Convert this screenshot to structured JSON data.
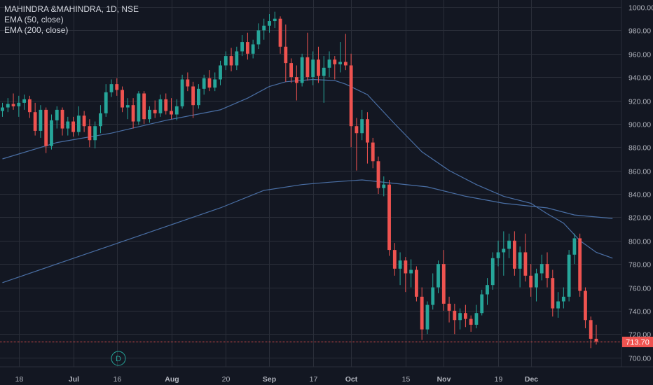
{
  "header": {
    "title": "MAHINDRA &MAHINDRA, 1D, NSE",
    "indicators": [
      "EMA (50, close)",
      "EMA (200, close)"
    ]
  },
  "colors": {
    "background": "#131722",
    "grid": "#2a2e39",
    "up": "#26a69a",
    "down": "#ef5350",
    "ema": "#4a6fa5",
    "text": "#b2b5be",
    "price_line": "#ef5350"
  },
  "price_label": "713.70",
  "event_marker": "D",
  "chart_data": {
    "type": "candlestick",
    "title": "MAHINDRA &MAHINDRA, 1D, NSE",
    "ylim": [
      692,
      1006
    ],
    "y_ticks": [
      700,
      720,
      740,
      760,
      780,
      800,
      820,
      840,
      860,
      880,
      900,
      920,
      940,
      960,
      980,
      1000
    ],
    "x_tick_labels": [
      "18",
      "Jul",
      "16",
      "Aug",
      "20",
      "Sep",
      "17",
      "Oct",
      "15",
      "Nov",
      "19",
      "Dec"
    ],
    "x_tick_bar_index": [
      3,
      13,
      21,
      31,
      41,
      49,
      57,
      64,
      74,
      81,
      91,
      97
    ],
    "last_price": 713.7,
    "ohlc": [
      {
        "o": 911,
        "h": 918,
        "l": 906,
        "c": 914
      },
      {
        "o": 914,
        "h": 922,
        "l": 910,
        "c": 917
      },
      {
        "o": 917,
        "h": 926,
        "l": 912,
        "c": 915
      },
      {
        "o": 915,
        "h": 924,
        "l": 906,
        "c": 918
      },
      {
        "o": 918,
        "h": 925,
        "l": 912,
        "c": 921
      },
      {
        "o": 921,
        "h": 924,
        "l": 905,
        "c": 910
      },
      {
        "o": 910,
        "h": 918,
        "l": 890,
        "c": 894
      },
      {
        "o": 894,
        "h": 916,
        "l": 888,
        "c": 912
      },
      {
        "o": 912,
        "h": 914,
        "l": 875,
        "c": 881
      },
      {
        "o": 881,
        "h": 908,
        "l": 878,
        "c": 903
      },
      {
        "o": 903,
        "h": 915,
        "l": 896,
        "c": 912
      },
      {
        "o": 912,
        "h": 914,
        "l": 890,
        "c": 896
      },
      {
        "o": 896,
        "h": 906,
        "l": 890,
        "c": 902
      },
      {
        "o": 902,
        "h": 906,
        "l": 889,
        "c": 893
      },
      {
        "o": 893,
        "h": 915,
        "l": 890,
        "c": 907
      },
      {
        "o": 907,
        "h": 911,
        "l": 893,
        "c": 898
      },
      {
        "o": 898,
        "h": 904,
        "l": 880,
        "c": 886
      },
      {
        "o": 886,
        "h": 902,
        "l": 879,
        "c": 898
      },
      {
        "o": 898,
        "h": 916,
        "l": 892,
        "c": 909
      },
      {
        "o": 909,
        "h": 934,
        "l": 906,
        "c": 927
      },
      {
        "o": 927,
        "h": 938,
        "l": 923,
        "c": 934
      },
      {
        "o": 934,
        "h": 939,
        "l": 924,
        "c": 929
      },
      {
        "o": 929,
        "h": 932,
        "l": 910,
        "c": 914
      },
      {
        "o": 914,
        "h": 922,
        "l": 904,
        "c": 916
      },
      {
        "o": 916,
        "h": 922,
        "l": 896,
        "c": 902
      },
      {
        "o": 902,
        "h": 928,
        "l": 899,
        "c": 926
      },
      {
        "o": 926,
        "h": 928,
        "l": 900,
        "c": 904
      },
      {
        "o": 904,
        "h": 915,
        "l": 901,
        "c": 912
      },
      {
        "o": 912,
        "h": 920,
        "l": 905,
        "c": 909
      },
      {
        "o": 909,
        "h": 925,
        "l": 906,
        "c": 921
      },
      {
        "o": 921,
        "h": 926,
        "l": 908,
        "c": 911
      },
      {
        "o": 911,
        "h": 922,
        "l": 904,
        "c": 908
      },
      {
        "o": 908,
        "h": 921,
        "l": 903,
        "c": 915
      },
      {
        "o": 915,
        "h": 942,
        "l": 913,
        "c": 938
      },
      {
        "o": 938,
        "h": 944,
        "l": 928,
        "c": 932
      },
      {
        "o": 932,
        "h": 936,
        "l": 905,
        "c": 916
      },
      {
        "o": 916,
        "h": 934,
        "l": 913,
        "c": 930
      },
      {
        "o": 930,
        "h": 942,
        "l": 925,
        "c": 939
      },
      {
        "o": 939,
        "h": 946,
        "l": 928,
        "c": 931
      },
      {
        "o": 931,
        "h": 944,
        "l": 928,
        "c": 938
      },
      {
        "o": 938,
        "h": 954,
        "l": 933,
        "c": 950
      },
      {
        "o": 950,
        "h": 962,
        "l": 946,
        "c": 958
      },
      {
        "o": 958,
        "h": 965,
        "l": 945,
        "c": 950
      },
      {
        "o": 950,
        "h": 966,
        "l": 946,
        "c": 962
      },
      {
        "o": 962,
        "h": 976,
        "l": 958,
        "c": 970
      },
      {
        "o": 970,
        "h": 978,
        "l": 955,
        "c": 960
      },
      {
        "o": 960,
        "h": 972,
        "l": 956,
        "c": 968
      },
      {
        "o": 968,
        "h": 986,
        "l": 964,
        "c": 980
      },
      {
        "o": 980,
        "h": 990,
        "l": 972,
        "c": 984
      },
      {
        "o": 984,
        "h": 994,
        "l": 978,
        "c": 988
      },
      {
        "o": 988,
        "h": 996,
        "l": 982,
        "c": 990
      },
      {
        "o": 990,
        "h": 992,
        "l": 960,
        "c": 966
      },
      {
        "o": 966,
        "h": 985,
        "l": 936,
        "c": 952
      },
      {
        "o": 952,
        "h": 956,
        "l": 935,
        "c": 940
      },
      {
        "o": 940,
        "h": 950,
        "l": 920,
        "c": 935
      },
      {
        "o": 935,
        "h": 960,
        "l": 932,
        "c": 957
      },
      {
        "o": 957,
        "h": 978,
        "l": 937,
        "c": 940
      },
      {
        "o": 940,
        "h": 962,
        "l": 933,
        "c": 955
      },
      {
        "o": 955,
        "h": 966,
        "l": 935,
        "c": 941
      },
      {
        "o": 941,
        "h": 958,
        "l": 918,
        "c": 948
      },
      {
        "o": 948,
        "h": 962,
        "l": 940,
        "c": 955
      },
      {
        "o": 955,
        "h": 958,
        "l": 938,
        "c": 951
      },
      {
        "o": 951,
        "h": 970,
        "l": 944,
        "c": 953
      },
      {
        "o": 953,
        "h": 977,
        "l": 946,
        "c": 950
      },
      {
        "o": 950,
        "h": 960,
        "l": 880,
        "c": 898
      },
      {
        "o": 898,
        "h": 905,
        "l": 860,
        "c": 892
      },
      {
        "o": 892,
        "h": 912,
        "l": 886,
        "c": 904
      },
      {
        "o": 904,
        "h": 910,
        "l": 866,
        "c": 884
      },
      {
        "o": 884,
        "h": 888,
        "l": 862,
        "c": 868
      },
      {
        "o": 868,
        "h": 872,
        "l": 840,
        "c": 845
      },
      {
        "o": 845,
        "h": 855,
        "l": 838,
        "c": 848
      },
      {
        "o": 848,
        "h": 852,
        "l": 787,
        "c": 792
      },
      {
        "o": 792,
        "h": 798,
        "l": 770,
        "c": 776
      },
      {
        "o": 776,
        "h": 790,
        "l": 762,
        "c": 783
      },
      {
        "o": 783,
        "h": 786,
        "l": 756,
        "c": 772
      },
      {
        "o": 772,
        "h": 784,
        "l": 760,
        "c": 775
      },
      {
        "o": 775,
        "h": 778,
        "l": 748,
        "c": 752
      },
      {
        "o": 752,
        "h": 760,
        "l": 715,
        "c": 724
      },
      {
        "o": 724,
        "h": 748,
        "l": 720,
        "c": 745
      },
      {
        "o": 745,
        "h": 772,
        "l": 741,
        "c": 760
      },
      {
        "o": 760,
        "h": 783,
        "l": 755,
        "c": 780
      },
      {
        "o": 780,
        "h": 792,
        "l": 740,
        "c": 746
      },
      {
        "o": 746,
        "h": 752,
        "l": 730,
        "c": 740
      },
      {
        "o": 740,
        "h": 746,
        "l": 720,
        "c": 732
      },
      {
        "o": 732,
        "h": 742,
        "l": 724,
        "c": 738
      },
      {
        "o": 738,
        "h": 745,
        "l": 726,
        "c": 733
      },
      {
        "o": 733,
        "h": 736,
        "l": 722,
        "c": 728
      },
      {
        "o": 728,
        "h": 745,
        "l": 725,
        "c": 738
      },
      {
        "o": 738,
        "h": 758,
        "l": 736,
        "c": 754
      },
      {
        "o": 754,
        "h": 768,
        "l": 745,
        "c": 762
      },
      {
        "o": 762,
        "h": 790,
        "l": 758,
        "c": 785
      },
      {
        "o": 785,
        "h": 800,
        "l": 778,
        "c": 790
      },
      {
        "o": 790,
        "h": 808,
        "l": 770,
        "c": 793
      },
      {
        "o": 793,
        "h": 806,
        "l": 785,
        "c": 800
      },
      {
        "o": 800,
        "h": 808,
        "l": 770,
        "c": 776
      },
      {
        "o": 776,
        "h": 795,
        "l": 760,
        "c": 790
      },
      {
        "o": 790,
        "h": 806,
        "l": 765,
        "c": 770
      },
      {
        "o": 770,
        "h": 780,
        "l": 752,
        "c": 760
      },
      {
        "o": 760,
        "h": 776,
        "l": 748,
        "c": 772
      },
      {
        "o": 772,
        "h": 788,
        "l": 766,
        "c": 780
      },
      {
        "o": 780,
        "h": 790,
        "l": 760,
        "c": 768
      },
      {
        "o": 768,
        "h": 775,
        "l": 735,
        "c": 742
      },
      {
        "o": 742,
        "h": 756,
        "l": 734,
        "c": 748
      },
      {
        "o": 748,
        "h": 760,
        "l": 742,
        "c": 752
      },
      {
        "o": 752,
        "h": 792,
        "l": 748,
        "c": 788
      },
      {
        "o": 788,
        "h": 806,
        "l": 780,
        "c": 802
      },
      {
        "o": 802,
        "h": 806,
        "l": 752,
        "c": 757
      },
      {
        "o": 757,
        "h": 760,
        "l": 725,
        "c": 732
      },
      {
        "o": 732,
        "h": 735,
        "l": 708,
        "c": 716
      },
      {
        "o": 716,
        "h": 728,
        "l": 711,
        "c": 713.7
      }
    ],
    "series": [
      {
        "name": "EMA (50, close)",
        "values_at_x": [
          [
            0,
            870
          ],
          [
            10,
            884
          ],
          [
            20,
            892
          ],
          [
            30,
            903
          ],
          [
            40,
            912
          ],
          [
            45,
            922
          ],
          [
            49,
            932
          ],
          [
            52,
            936
          ],
          [
            57,
            938
          ],
          [
            61,
            937
          ],
          [
            63,
            934
          ],
          [
            67,
            925
          ],
          [
            72,
            900
          ],
          [
            77,
            876
          ],
          [
            82,
            860
          ],
          [
            87,
            848
          ],
          [
            92,
            838
          ],
          [
            97,
            832
          ],
          [
            100,
            823
          ],
          [
            103,
            815
          ],
          [
            106,
            800
          ],
          [
            109,
            790
          ],
          [
            112,
            785
          ]
        ]
      },
      {
        "name": "EMA (200, close)",
        "values_at_x": [
          [
            0,
            764
          ],
          [
            10,
            780
          ],
          [
            20,
            796
          ],
          [
            30,
            812
          ],
          [
            40,
            828
          ],
          [
            48,
            843
          ],
          [
            55,
            848
          ],
          [
            60,
            850
          ],
          [
            66,
            852
          ],
          [
            72,
            849
          ],
          [
            78,
            846
          ],
          [
            85,
            838
          ],
          [
            92,
            832
          ],
          [
            100,
            828
          ],
          [
            105,
            822
          ],
          [
            112,
            819
          ]
        ]
      }
    ]
  }
}
